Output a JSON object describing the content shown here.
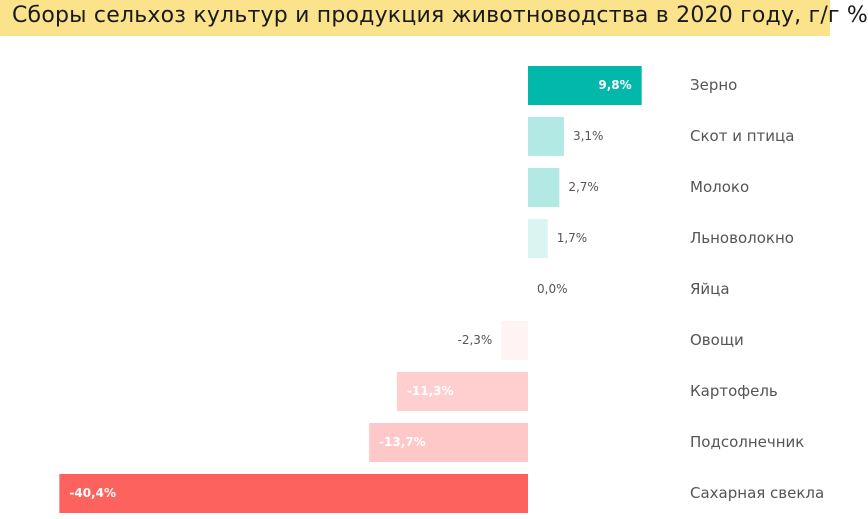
{
  "title": "Сборы сельхоз культур и продукция животноводства в 2020 году, г/г %",
  "chart_data": {
    "type": "bar",
    "orientation": "horizontal",
    "categories": [
      "Зерно",
      "Скот и птица",
      "Молоко",
      "Льноволокно",
      "Яйца",
      "Овощи",
      "Картофель",
      "Подсолнечник",
      "Сахарная свекла"
    ],
    "values": [
      9.8,
      3.1,
      2.7,
      1.7,
      0.0,
      -2.3,
      -11.3,
      -13.7,
      -40.4
    ],
    "value_labels": [
      "9,8%",
      "3,1%",
      "2,7%",
      "1,7%",
      "0,0%",
      "-2,3%",
      "-11,3%",
      "-13,7%",
      "-40,4%"
    ],
    "colors": [
      "#01b8aa",
      "#b3e9e5",
      "#b3e9e5",
      "#d9f4f2",
      "#ffffff",
      "#fff3f3",
      "#ffcfcf",
      "#ffc8c8",
      "#fd625e"
    ],
    "label_inside_color": "#ffffff",
    "legend": "none",
    "grid": false
  }
}
